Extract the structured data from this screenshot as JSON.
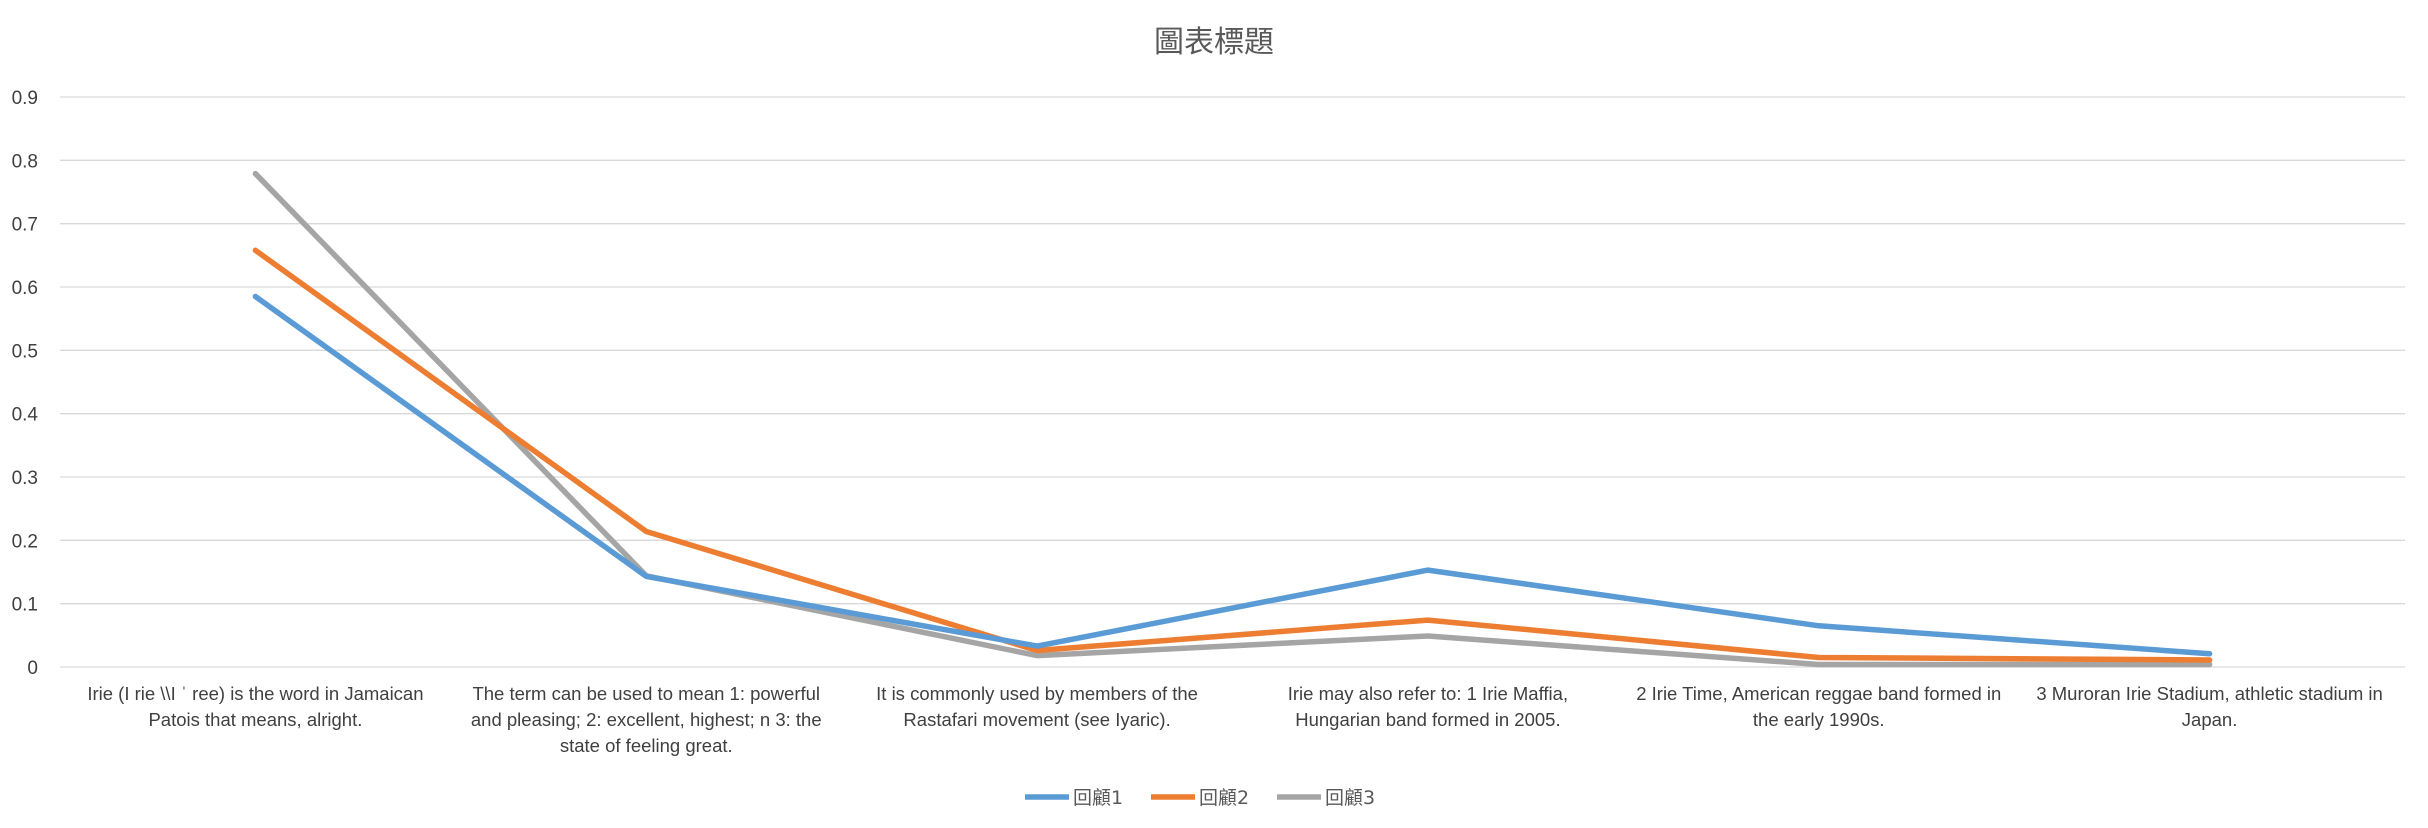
{
  "chart_data": {
    "type": "line",
    "title": "圖表標題",
    "xlabel": "",
    "ylabel": "",
    "ylim": [
      0,
      0.9
    ],
    "yticks": [
      "0",
      "0.1",
      "0.2",
      "0.3",
      "0.4",
      "0.5",
      "0.6",
      "0.7",
      "0.8",
      "0.9"
    ],
    "grid": true,
    "legend_position": "bottom",
    "categories": [
      [
        "Irie (I rie \\\\I ˈ ree) is the word in Jamaican",
        "Patois that means, alright."
      ],
      [
        "The term can be used to mean 1: powerful",
        "and pleasing; 2: excellent, highest; n 3: the",
        "state of feeling great."
      ],
      [
        "It is commonly used by members of the",
        "Rastafari movement (see Iyaric)."
      ],
      [
        "Irie may also refer to: 1  Irie Maffia,",
        "Hungarian band formed in 2005."
      ],
      [
        "2  Irie Time, American reggae band formed in",
        "the early 1990s."
      ],
      [
        "3  Muroran Irie Stadium, athletic stadium in",
        "Japan."
      ]
    ],
    "series": [
      {
        "name": "回顧1",
        "color": "#5b9bd5",
        "values": [
          0.585,
          0.143,
          0.033,
          0.153,
          0.065,
          0.021
        ]
      },
      {
        "name": "回顧2",
        "color": "#ed7d31",
        "values": [
          0.658,
          0.214,
          0.026,
          0.074,
          0.015,
          0.011
        ]
      },
      {
        "name": "回顧3",
        "color": "#a5a5a5",
        "values": [
          0.779,
          0.144,
          0.018,
          0.049,
          0.004,
          0.004
        ]
      }
    ]
  }
}
